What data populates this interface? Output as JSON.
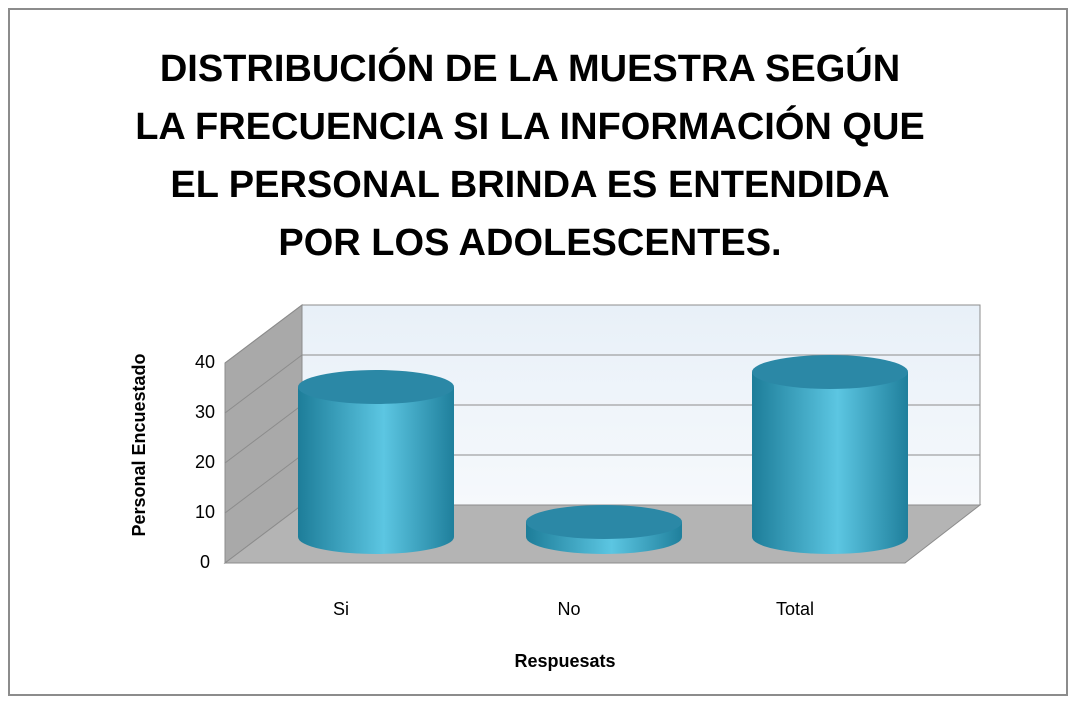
{
  "chart_data": {
    "type": "bar3d-cylinder",
    "title": "DISTRIBUCIÓN DE LA MUESTRA SEGÚN LA FRECUENCIA SI LA INFORMACIÓN QUE EL PERSONAL BRINDA ES ENTENDIDA POR LOS ADOLESCENTES.",
    "categories": [
      "Si",
      "No",
      "Total"
    ],
    "values": [
      30,
      3,
      33
    ],
    "color": "#3aa8c8",
    "ylim": [
      0,
      40
    ],
    "yticks": [
      0,
      10,
      20,
      30,
      40
    ],
    "xlabel": "Respuesats",
    "ylabel": "Personal Encuestado",
    "grid": true
  }
}
